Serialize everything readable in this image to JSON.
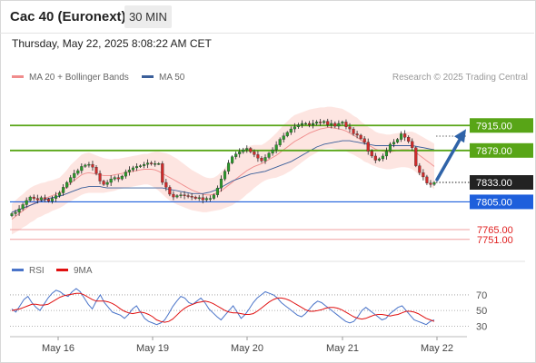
{
  "header": {
    "title": "Cac 40 (Euronext)",
    "interval": "30 MIN"
  },
  "timestamp": "Thursday, May 22, 2025 8:08:22 AM CET",
  "legend": {
    "bollinger_label": "MA 20 + Bollinger Bands",
    "ma50_label": "MA 50",
    "credit": "Research © 2025 Trading Central",
    "rsi_label": "RSI",
    "ma9_label": "9MA"
  },
  "colors": {
    "bollinger": "#f08c8c",
    "band_fill": "#fde0dc",
    "ma50": "#3b5f9a",
    "green_level": "#58a517",
    "blue_level": "#1e5fdc",
    "red_level": "#f0a0a0",
    "current": "#222222",
    "arrow": "#2f63a8",
    "rsi": "#4a74c9",
    "ma9": "#e01010"
  },
  "chart_data": [
    {
      "type": "candlestick",
      "x_labels": [
        "May 16",
        "May 19",
        "May 20",
        "May 21",
        "May 22"
      ],
      "ylim": [
        7735,
        7965
      ],
      "levels": [
        {
          "value": 7915.0,
          "label": "7915.00",
          "style": "green-box"
        },
        {
          "value": 7879.0,
          "label": "7879.00",
          "style": "green-box"
        },
        {
          "value": 7833.0,
          "label": "7833.00",
          "style": "current"
        },
        {
          "value": 7805.0,
          "label": "7805.00",
          "style": "blue-box"
        },
        {
          "value": 7765.0,
          "label": "7765.00",
          "style": "red-text"
        },
        {
          "value": 7751.0,
          "label": "7751.00",
          "style": "red-text"
        }
      ],
      "close": [
        7788,
        7790,
        7795,
        7801,
        7807,
        7812,
        7810,
        7808,
        7811,
        7809,
        7806,
        7810,
        7814,
        7818,
        7826,
        7833,
        7840,
        7846,
        7850,
        7856,
        7858,
        7859,
        7855,
        7846,
        7835,
        7830,
        7833,
        7838,
        7840,
        7838,
        7842,
        7848,
        7851,
        7854,
        7856,
        7857,
        7859,
        7861,
        7860,
        7860,
        7860,
        7833,
        7826,
        7816,
        7812,
        7814,
        7815,
        7814,
        7813,
        7812,
        7810,
        7811,
        7808,
        7810,
        7810,
        7815,
        7825,
        7838,
        7849,
        7861,
        7870,
        7874,
        7877,
        7880,
        7882,
        7877,
        7873,
        7868,
        7864,
        7869,
        7875,
        7880,
        7887,
        7895,
        7900,
        7905,
        7910,
        7913,
        7916,
        7918,
        7918,
        7916,
        7918,
        7920,
        7919,
        7921,
        7916,
        7918,
        7914,
        7918,
        7920,
        7913,
        7910,
        7903,
        7901,
        7896,
        7891,
        7878,
        7871,
        7865,
        7867,
        7871,
        7878,
        7888,
        7891,
        7895,
        7903,
        7898,
        7892,
        7883,
        7857,
        7847,
        7841,
        7832,
        7830,
        7833
      ],
      "ma20": [
        7780,
        7784,
        7788,
        7792,
        7796,
        7800,
        7803,
        7806,
        7808,
        7810,
        7812,
        7814,
        7816,
        7818,
        7822,
        7827,
        7832,
        7836,
        7840,
        7844,
        7846,
        7847,
        7846,
        7845,
        7844,
        7843,
        7843,
        7843,
        7844,
        7845,
        7846,
        7847,
        7848,
        7849,
        7850,
        7851,
        7852,
        7852,
        7852,
        7851,
        7849,
        7846,
        7843,
        7840,
        7837,
        7834,
        7831,
        7828,
        7825,
        7822,
        7820,
        7818,
        7816,
        7815,
        7815,
        7816,
        7818,
        7821,
        7825,
        7829,
        7833,
        7838,
        7842,
        7846,
        7850,
        7853,
        7856,
        7858,
        7860,
        7863,
        7866,
        7869,
        7872,
        7876,
        7880,
        7884,
        7888,
        7892,
        7895,
        7898,
        7901,
        7904,
        7906,
        7908,
        7910,
        7911,
        7912,
        7912,
        7911,
        7910,
        7909,
        7907,
        7904,
        7901,
        7898,
        7894,
        7890,
        7887,
        7884,
        7881,
        7879,
        7878,
        7877,
        7877,
        7878,
        7879,
        7880,
        7880,
        7880,
        7879,
        7876,
        7872,
        7868,
        7864,
        7860,
        7856
      ],
      "band_width": [
        22,
        23,
        24,
        24,
        25,
        25,
        25,
        24,
        24,
        23,
        23,
        22,
        22,
        22,
        23,
        24,
        26,
        27,
        28,
        29,
        29,
        29,
        28,
        27,
        26,
        25,
        24,
        23,
        23,
        22,
        22,
        22,
        22,
        22,
        22,
        22,
        22,
        22,
        24,
        26,
        28,
        30,
        32,
        33,
        33,
        33,
        32,
        31,
        30,
        29,
        28,
        27,
        26,
        25,
        24,
        24,
        25,
        27,
        29,
        31,
        33,
        34,
        35,
        35,
        34,
        33,
        31,
        29,
        27,
        27,
        28,
        30,
        32,
        34,
        36,
        37,
        38,
        38,
        37,
        36,
        35,
        34,
        33,
        32,
        31,
        30,
        30,
        30,
        30,
        30,
        30,
        29,
        29,
        28,
        28,
        27,
        27,
        26,
        26,
        25,
        25,
        25,
        25,
        25,
        25,
        25,
        25,
        25,
        26,
        27,
        28,
        29,
        30,
        31,
        32,
        33
      ],
      "ma50": [
        7790,
        7792,
        7794,
        7796,
        7798,
        7800,
        7802,
        7804,
        7806,
        7808,
        7810,
        7811,
        7812,
        7813,
        7815,
        7817,
        7819,
        7821,
        7823,
        7825,
        7826,
        7827,
        7827,
        7827,
        7827,
        7826,
        7825,
        7825,
        7825,
        7825,
        7825,
        7825,
        7825,
        7825,
        7825,
        7825,
        7825,
        7825,
        7825,
        7825,
        7825,
        7825,
        7824,
        7823,
        7822,
        7821,
        7820,
        7819,
        7818,
        7817,
        7817,
        7817,
        7817,
        7818,
        7819,
        7821,
        7823,
        7826,
        7829,
        7832,
        7835,
        7837,
        7839,
        7841,
        7843,
        7845,
        7846,
        7847,
        7848,
        7849,
        7851,
        7853,
        7855,
        7857,
        7859,
        7861,
        7863,
        7866,
        7869,
        7872,
        7875,
        7878,
        7881,
        7884,
        7886,
        7888,
        7889,
        7890,
        7891,
        7892,
        7893,
        7893,
        7893,
        7892,
        7891,
        7890,
        7889,
        7888,
        7887,
        7886,
        7886,
        7886,
        7886,
        7886,
        7886,
        7886,
        7886,
        7886,
        7886,
        7886,
        7885,
        7884,
        7883,
        7882,
        7881,
        7880
      ],
      "forecast_arrow": {
        "from": 7833,
        "to": 7915
      }
    },
    {
      "type": "line",
      "series": [
        {
          "name": "RSI",
          "values": [
            52,
            48,
            56,
            64,
            68,
            60,
            54,
            50,
            58,
            66,
            72,
            76,
            74,
            70,
            68,
            74,
            78,
            74,
            66,
            58,
            52,
            62,
            70,
            60,
            54,
            48,
            46,
            44,
            40,
            45,
            52,
            56,
            48,
            40,
            36,
            34,
            32,
            34,
            38,
            46,
            55,
            62,
            68,
            66,
            60,
            58,
            62,
            66,
            60,
            52,
            47,
            42,
            38,
            44,
            50,
            56,
            48,
            40,
            45,
            52,
            60,
            66,
            70,
            74,
            72,
            70,
            66,
            60,
            56,
            52,
            48,
            44,
            42,
            46,
            52,
            58,
            62,
            60,
            56,
            52,
            48,
            44,
            40,
            36,
            34,
            36,
            42,
            50,
            54,
            50,
            46,
            42,
            38,
            40,
            46,
            50,
            54,
            56,
            50,
            44,
            38,
            36,
            34,
            32,
            36,
            38
          ]
        },
        {
          "name": "9MA",
          "values": [
            50,
            51,
            52,
            54,
            56,
            58,
            58,
            57,
            57,
            58,
            61,
            64,
            67,
            69,
            70,
            71,
            72,
            72,
            70,
            67,
            64,
            62,
            62,
            62,
            61,
            59,
            56,
            52,
            49,
            47,
            46,
            47,
            48,
            47,
            45,
            42,
            38,
            36,
            35,
            36,
            39,
            44,
            49,
            53,
            56,
            58,
            60,
            61,
            62,
            61,
            59,
            56,
            53,
            50,
            48,
            47,
            47,
            46,
            45,
            45,
            46,
            49,
            53,
            57,
            61,
            64,
            66,
            66,
            65,
            63,
            60,
            57,
            54,
            51,
            49,
            49,
            50,
            51,
            53,
            54,
            54,
            53,
            51,
            48,
            45,
            42,
            40,
            39,
            40,
            42,
            44,
            45,
            45,
            44,
            43,
            44,
            45,
            47,
            49,
            49,
            48,
            46,
            43,
            40,
            38,
            36
          ]
        }
      ],
      "ylim": [
        20,
        85
      ],
      "yticks": [
        70,
        50,
        30
      ]
    }
  ]
}
